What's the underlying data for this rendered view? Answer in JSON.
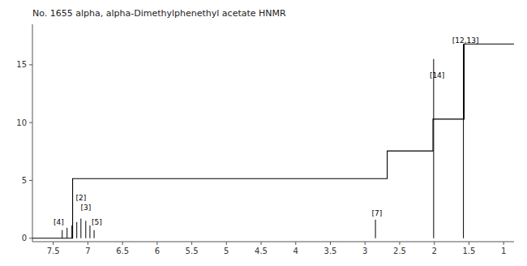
{
  "chart_data": {
    "type": "spectrum",
    "title": "No. 1655 alpha, alpha-Dimethylphenethyl acetate HNMR",
    "color": "#000000",
    "grid": false,
    "xlim": [
      7.8,
      0.85
    ],
    "ylim": [
      -0.3,
      18.5
    ],
    "xticks": [
      7.5,
      7,
      6.5,
      6,
      5.5,
      5,
      4.5,
      4,
      3.5,
      3,
      2.5,
      2,
      1.5,
      1
    ],
    "yticks": [
      0,
      5,
      10,
      15
    ],
    "peaks": {
      "x": [
        7.37,
        7.3,
        7.23,
        7.16,
        7.1,
        7.03,
        6.97,
        6.91,
        2.85,
        2.01,
        1.58
      ],
      "y0": [
        0,
        0,
        0,
        0,
        0,
        0,
        0,
        0,
        0,
        0,
        0
      ],
      "y1": [
        0.7,
        0.9,
        1.1,
        1.4,
        1.7,
        1.5,
        1.1,
        0.7,
        1.6,
        15.5,
        16.8
      ]
    },
    "integral": {
      "x": [
        7.8,
        7.22,
        7.22,
        6.75,
        6.75,
        2.68,
        2.68,
        2.02,
        2.02,
        1.57,
        1.57,
        0.85
      ],
      "y": [
        0.0,
        0.0,
        5.15,
        5.15,
        5.15,
        5.15,
        7.55,
        7.55,
        10.3,
        10.3,
        16.8,
        16.8
      ]
    },
    "annotations": [
      {
        "label": "[2]",
        "x": 7.1,
        "y": 3.2
      },
      {
        "label": "[3]",
        "x": 7.03,
        "y": 2.4
      },
      {
        "label": "[4]",
        "x": 7.42,
        "y": 1.1
      },
      {
        "label": "[5]",
        "x": 6.87,
        "y": 1.1
      },
      {
        "label": "[7]",
        "x": 2.83,
        "y": 1.85
      },
      {
        "label": "[14]",
        "x": 1.96,
        "y": 13.8
      },
      {
        "label": "[12,13]",
        "x": 1.55,
        "y": 16.85
      }
    ]
  }
}
